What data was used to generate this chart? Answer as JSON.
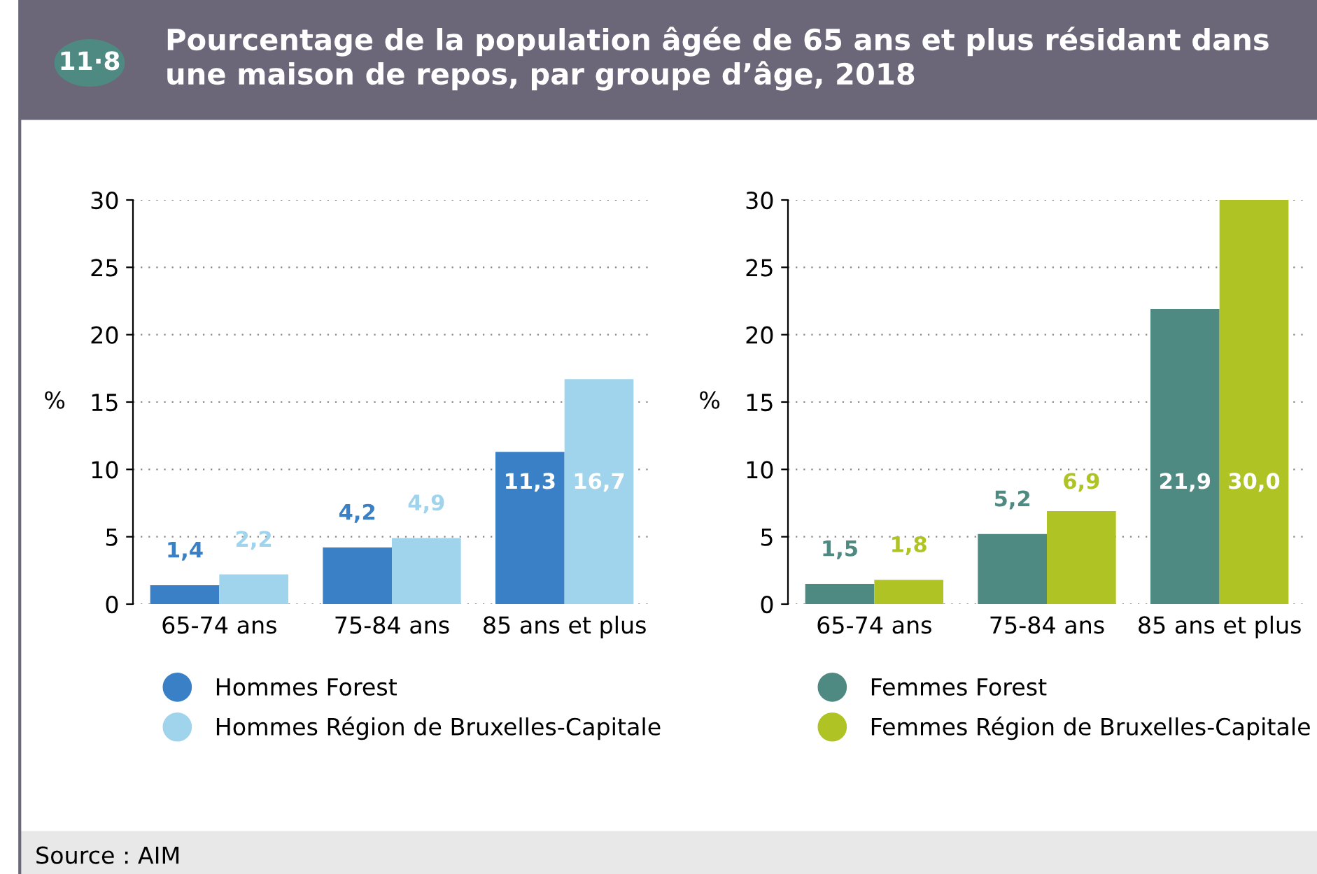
{
  "chart_data": [
    {
      "type": "bar",
      "title": "Pourcentage de la population âgée de 65 ans et plus résidant dans une maison de repos, par groupe d’âge, 2018",
      "ylabel": "%",
      "categories": [
        "65-74 ans",
        "75-84 ans",
        "85 ans et plus"
      ],
      "series": [
        {
          "name": "Hommes Forest",
          "color": "#3a80c6",
          "values": [
            1.4,
            4.2,
            11.3
          ],
          "value_labels": [
            "1,4",
            "4,2",
            "11,3"
          ]
        },
        {
          "name": "Hommes Région de Bruxelles-Capitale",
          "color": "#a0d4ec",
          "values": [
            2.2,
            4.9,
            16.7
          ],
          "value_labels": [
            "2,2",
            "4,9",
            "16,7"
          ]
        }
      ],
      "ylim": [
        0,
        30
      ],
      "yticks": [
        0,
        5,
        10,
        15,
        20,
        25,
        30
      ],
      "grid": "y",
      "legend": "bottom",
      "annotations": [
        "11·8"
      ]
    },
    {
      "type": "bar",
      "ylabel": "%",
      "categories": [
        "65-74 ans",
        "75-84 ans",
        "85 ans et plus"
      ],
      "series": [
        {
          "name": "Femmes Forest",
          "color": "#4f8a82",
          "values": [
            1.5,
            5.2,
            21.9
          ],
          "value_labels": [
            "1,5",
            "5,2",
            "21,9"
          ]
        },
        {
          "name": "Femmes Région de Bruxelles-Capitale",
          "color": "#afc424",
          "values": [
            1.8,
            6.9,
            30.0
          ],
          "value_labels": [
            "1,8",
            "6,9",
            "30,0"
          ]
        }
      ],
      "ylim": [
        0,
        30
      ],
      "yticks": [
        0,
        5,
        10,
        15,
        20,
        25,
        30
      ],
      "grid": "y",
      "legend": "bottom",
      "annotations": [
        "Source : AIM"
      ]
    }
  ]
}
